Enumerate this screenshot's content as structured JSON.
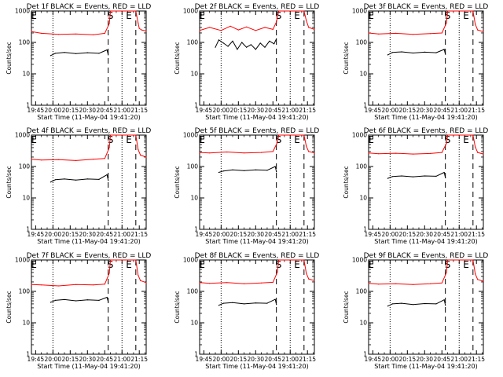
{
  "chart_data": [
    {
      "type": "line",
      "title": "Det 1f BLACK = Events, RED = LLD",
      "xlabel": "Start Time (11-May-04 19:41:20)",
      "ylabel": "Counts/sec",
      "yscale": "log",
      "ylim": [
        1,
        1000
      ],
      "y_ticks": [
        "1",
        "10",
        "100",
        "1000"
      ],
      "x_ticks": [
        "19:45",
        "20:00",
        "20:15",
        "20:30",
        "20:45",
        "21:00",
        "21:15"
      ],
      "x_range": [
        "19:41:20",
        "21:21:00"
      ],
      "markers": [
        {
          "label": "S",
          "time": "20:50"
        },
        {
          "label": "E",
          "time": "21:06"
        }
      ],
      "grid": false,
      "series": [
        {
          "color": "#ff0000",
          "x": [
            "19:41:20",
            "19:50",
            "20:05",
            "20:20",
            "20:35",
            "20:45",
            "20:49",
            "20:50",
            "21:12",
            "21:14",
            "21:15",
            "21:17",
            "21:21"
          ],
          "values": [
            220,
            195,
            180,
            185,
            175,
            195,
            400,
            1000,
            1000,
            420,
            280,
            250,
            230
          ]
        },
        {
          "color": "#000000",
          "x": [
            "19:58",
            "20:02",
            "20:10",
            "20:20",
            "20:30",
            "20:40",
            "20:47",
            "20:48"
          ],
          "values": [
            38,
            45,
            48,
            44,
            47,
            45,
            58,
            40
          ]
        }
      ]
    },
    {
      "type": "line",
      "title": "Det 2f BLACK = Events, RED = LLD",
      "xlabel": "Start Time (11-May-04 19:41:20)",
      "ylabel": "Counts/sec",
      "yscale": "log",
      "ylim": [
        1,
        1000
      ],
      "y_ticks": [
        "1",
        "10",
        "100",
        "1000"
      ],
      "x_ticks": [
        "19:45",
        "20:00",
        "20:15",
        "20:30",
        "20:45",
        "21:00",
        "21:15"
      ],
      "x_range": [
        "19:41:20",
        "21:21:00"
      ],
      "markers": [
        {
          "label": "S",
          "time": "20:50"
        },
        {
          "label": "E",
          "time": "21:06"
        }
      ],
      "grid": false,
      "series": [
        {
          "color": "#ff0000",
          "x": [
            "19:41:20",
            "19:50",
            "20:00",
            "20:08",
            "20:15",
            "20:22",
            "20:30",
            "20:38",
            "20:45",
            "20:48",
            "20:50",
            "21:12",
            "21:14",
            "21:16",
            "21:21"
          ],
          "values": [
            240,
            300,
            240,
            330,
            250,
            310,
            240,
            300,
            260,
            450,
            1000,
            1000,
            500,
            300,
            260
          ]
        },
        {
          "color": "#000000",
          "x": [
            "19:55",
            "19:58",
            "20:02",
            "20:06",
            "20:10",
            "20:14",
            "20:18",
            "20:22",
            "20:26",
            "20:30",
            "20:34",
            "20:38",
            "20:42",
            "20:46",
            "20:48"
          ],
          "values": [
            70,
            120,
            95,
            75,
            110,
            60,
            100,
            70,
            85,
            60,
            95,
            70,
            110,
            90,
            130
          ]
        }
      ]
    },
    {
      "type": "line",
      "title": "Det 3f BLACK = Events, RED = LLD",
      "xlabel": "Start Time (11-May-04 19:41:20)",
      "ylabel": "Counts/sec",
      "yscale": "log",
      "ylim": [
        1,
        1000
      ],
      "y_ticks": [
        "1",
        "10",
        "100",
        "1000"
      ],
      "x_ticks": [
        "19:45",
        "20:00",
        "20:15",
        "20:30",
        "20:45",
        "21:00",
        "21:15"
      ],
      "x_range": [
        "19:41:20",
        "21:21:00"
      ],
      "markers": [
        {
          "label": "S",
          "time": "20:50"
        },
        {
          "label": "E",
          "time": "21:06"
        }
      ],
      "grid": false,
      "series": [
        {
          "color": "#ff0000",
          "x": [
            "19:41:20",
            "19:50",
            "20:05",
            "20:20",
            "20:35",
            "20:45",
            "20:49",
            "20:50",
            "21:12",
            "21:14",
            "21:16",
            "21:21"
          ],
          "values": [
            200,
            185,
            195,
            180,
            190,
            200,
            420,
            1000,
            1000,
            380,
            250,
            220
          ]
        },
        {
          "color": "#000000",
          "x": [
            "19:58",
            "20:02",
            "20:10",
            "20:20",
            "20:30",
            "20:40",
            "20:47",
            "20:48"
          ],
          "values": [
            40,
            48,
            50,
            46,
            49,
            47,
            60,
            42
          ]
        }
      ]
    },
    {
      "type": "line",
      "title": "Det 4f BLACK = Events, RED = LLD",
      "xlabel": "Start Time (11-May-04 19:41:20)",
      "ylabel": "Counts/sec",
      "yscale": "log",
      "ylim": [
        1,
        1000
      ],
      "y_ticks": [
        "1",
        "10",
        "100",
        "1000"
      ],
      "x_ticks": [
        "19:45",
        "20:00",
        "20:15",
        "20:30",
        "20:45",
        "21:00",
        "21:15"
      ],
      "x_range": [
        "19:41:20",
        "21:21:00"
      ],
      "markers": [
        {
          "label": "S",
          "time": "20:50"
        },
        {
          "label": "E",
          "time": "21:06"
        }
      ],
      "grid": false,
      "series": [
        {
          "color": "#ff0000",
          "x": [
            "19:41:20",
            "19:50",
            "20:05",
            "20:20",
            "20:35",
            "20:45",
            "20:49",
            "20:50",
            "21:12",
            "21:14",
            "21:16",
            "21:21"
          ],
          "values": [
            170,
            160,
            165,
            155,
            170,
            180,
            400,
            1000,
            1000,
            350,
            230,
            200
          ]
        },
        {
          "color": "#000000",
          "x": [
            "19:58",
            "20:02",
            "20:10",
            "20:20",
            "20:30",
            "20:40",
            "20:47",
            "20:48"
          ],
          "values": [
            32,
            38,
            40,
            37,
            40,
            39,
            55,
            36
          ]
        }
      ]
    },
    {
      "type": "line",
      "title": "Det 5f BLACK = Events, RED = LLD",
      "xlabel": "Start Time (11-May-04 19:41:20)",
      "ylabel": "Counts/sec",
      "yscale": "log",
      "ylim": [
        1,
        1000
      ],
      "y_ticks": [
        "1",
        "10",
        "100",
        "1000"
      ],
      "x_ticks": [
        "19:45",
        "20:00",
        "20:15",
        "20:30",
        "20:45",
        "21:00",
        "21:15"
      ],
      "x_range": [
        "19:41:20",
        "21:21:00"
      ],
      "markers": [
        {
          "label": "S",
          "time": "20:50"
        },
        {
          "label": "E",
          "time": "21:06"
        }
      ],
      "grid": false,
      "series": [
        {
          "color": "#ff0000",
          "x": [
            "19:41:20",
            "19:50",
            "20:05",
            "20:20",
            "20:35",
            "20:45",
            "20:49",
            "20:50",
            "21:12",
            "21:14",
            "21:16",
            "21:21"
          ],
          "values": [
            280,
            270,
            290,
            270,
            280,
            300,
            600,
            1000,
            1000,
            450,
            300,
            270
          ]
        },
        {
          "color": "#000000",
          "x": [
            "19:58",
            "20:02",
            "20:10",
            "20:20",
            "20:30",
            "20:40",
            "20:47",
            "20:48"
          ],
          "values": [
            65,
            72,
            78,
            74,
            78,
            76,
            100,
            68
          ]
        }
      ]
    },
    {
      "type": "line",
      "title": "Det 6f BLACK = Events, RED = LLD",
      "xlabel": "Start Time (11-May-04 19:41:20)",
      "ylabel": "Counts/sec",
      "yscale": "log",
      "ylim": [
        1,
        1000
      ],
      "y_ticks": [
        "1",
        "10",
        "100",
        "1000"
      ],
      "x_ticks": [
        "19:45",
        "20:00",
        "20:15",
        "20:30",
        "20:45",
        "21:00",
        "21:15"
      ],
      "x_range": [
        "19:41:20",
        "21:21:00"
      ],
      "markers": [
        {
          "label": "S",
          "time": "20:50"
        },
        {
          "label": "E",
          "time": "21:06"
        }
      ],
      "grid": false,
      "series": [
        {
          "color": "#ff0000",
          "x": [
            "19:41:20",
            "19:50",
            "20:05",
            "20:20",
            "20:35",
            "20:45",
            "20:49",
            "20:50",
            "21:12",
            "21:14",
            "21:16",
            "21:21"
          ],
          "values": [
            270,
            255,
            265,
            250,
            260,
            280,
            550,
            1000,
            1000,
            420,
            280,
            250
          ]
        },
        {
          "color": "#000000",
          "x": [
            "19:58",
            "20:02",
            "20:10",
            "20:20",
            "20:30",
            "20:40",
            "20:47",
            "20:48"
          ],
          "values": [
            42,
            48,
            50,
            47,
            50,
            49,
            65,
            44
          ]
        }
      ]
    },
    {
      "type": "line",
      "title": "Det 7f BLACK = Events, RED = LLD",
      "xlabel": "Start Time (11-May-04 19:41:20)",
      "ylabel": "Counts/sec",
      "yscale": "log",
      "ylim": [
        1,
        1000
      ],
      "y_ticks": [
        "1",
        "10",
        "100",
        "1000"
      ],
      "x_ticks": [
        "19:45",
        "20:00",
        "20:15",
        "20:30",
        "20:45",
        "21:00",
        "21:15"
      ],
      "x_range": [
        "19:41:20",
        "21:21:00"
      ],
      "markers": [
        {
          "label": "S",
          "time": "20:50"
        },
        {
          "label": "E",
          "time": "21:06"
        }
      ],
      "grid": false,
      "series": [
        {
          "color": "#ff0000",
          "x": [
            "19:41:20",
            "19:50",
            "20:05",
            "20:20",
            "20:35",
            "20:45",
            "20:49",
            "20:50",
            "21:12",
            "21:14",
            "21:16",
            "21:21"
          ],
          "values": [
            165,
            160,
            150,
            165,
            160,
            170,
            380,
            1000,
            1000,
            330,
            220,
            190
          ]
        },
        {
          "color": "#000000",
          "x": [
            "19:58",
            "20:02",
            "20:10",
            "20:20",
            "20:30",
            "20:40",
            "20:47",
            "20:48"
          ],
          "values": [
            45,
            52,
            55,
            50,
            54,
            52,
            65,
            46
          ]
        }
      ]
    },
    {
      "type": "line",
      "title": "Det 8f BLACK = Events, RED = LLD",
      "xlabel": "Start Time (11-May-04 19:41:20)",
      "ylabel": "Counts/sec",
      "yscale": "log",
      "ylim": [
        1,
        1000
      ],
      "y_ticks": [
        "1",
        "10",
        "100",
        "1000"
      ],
      "x_ticks": [
        "19:45",
        "20:00",
        "20:15",
        "20:30",
        "20:45",
        "21:00",
        "21:15"
      ],
      "x_range": [
        "19:41:20",
        "21:21:00"
      ],
      "markers": [
        {
          "label": "S",
          "time": "20:50"
        },
        {
          "label": "E",
          "time": "21:06"
        }
      ],
      "grid": false,
      "series": [
        {
          "color": "#ff0000",
          "x": [
            "19:41:20",
            "19:50",
            "20:05",
            "20:20",
            "20:35",
            "20:45",
            "20:49",
            "20:50",
            "21:12",
            "21:14",
            "21:16",
            "21:21"
          ],
          "values": [
            190,
            180,
            190,
            175,
            185,
            195,
            420,
            1000,
            1000,
            380,
            250,
            220
          ]
        },
        {
          "color": "#000000",
          "x": [
            "19:58",
            "20:02",
            "20:10",
            "20:20",
            "20:30",
            "20:40",
            "20:47",
            "20:48"
          ],
          "values": [
            36,
            42,
            44,
            40,
            43,
            42,
            56,
            38
          ]
        }
      ]
    },
    {
      "type": "line",
      "title": "Det 9f BLACK = Events, RED = LLD",
      "xlabel": "Start Time (11-May-04 19:41:20)",
      "ylabel": "Counts/sec",
      "yscale": "log",
      "ylim": [
        1,
        1000
      ],
      "y_ticks": [
        "1",
        "10",
        "100",
        "1000"
      ],
      "x_ticks": [
        "19:45",
        "20:00",
        "20:15",
        "20:30",
        "20:45",
        "21:00",
        "21:15"
      ],
      "x_range": [
        "19:41:20",
        "21:21:00"
      ],
      "markers": [
        {
          "label": "S",
          "time": "20:50"
        },
        {
          "label": "E",
          "time": "21:06"
        }
      ],
      "grid": false,
      "series": [
        {
          "color": "#ff0000",
          "x": [
            "19:41:20",
            "19:50",
            "20:05",
            "20:20",
            "20:35",
            "20:45",
            "20:49",
            "20:50",
            "21:12",
            "21:14",
            "21:16",
            "21:21"
          ],
          "values": [
            180,
            170,
            175,
            165,
            175,
            185,
            400,
            1000,
            1000,
            360,
            240,
            210
          ]
        },
        {
          "color": "#000000",
          "x": [
            "19:58",
            "20:02",
            "20:10",
            "20:20",
            "20:30",
            "20:40",
            "20:47",
            "20:48"
          ],
          "values": [
            34,
            40,
            42,
            38,
            41,
            40,
            54,
            36
          ]
        }
      ]
    }
  ]
}
